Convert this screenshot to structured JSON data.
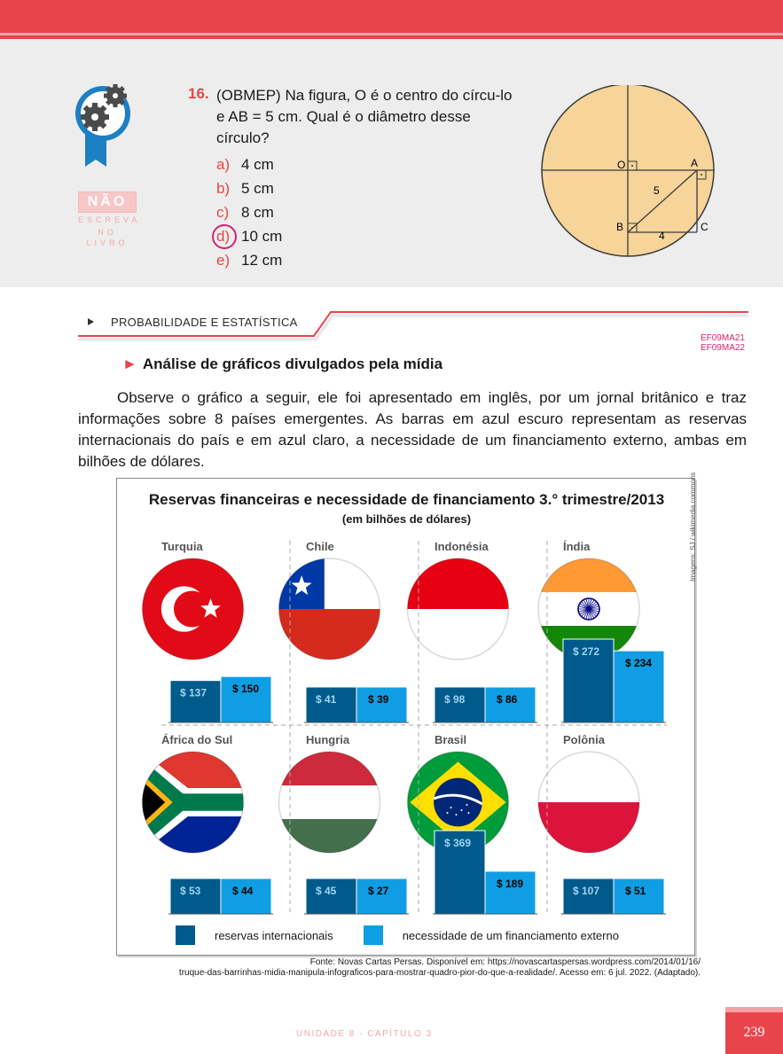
{
  "exercise": {
    "number": "16.",
    "text": "(OBMEP) Na figura, O é o centro do círcu-lo e AB = 5 cm. Qual é o diâmetro desse círculo?",
    "options": [
      {
        "letter": "a)",
        "text": "4 cm",
        "selected": false
      },
      {
        "letter": "b)",
        "text": "5 cm",
        "selected": false
      },
      {
        "letter": "c)",
        "text": "8 cm",
        "selected": false
      },
      {
        "letter": "d)",
        "text": "10 cm",
        "selected": true
      },
      {
        "letter": "e)",
        "text": "12 cm",
        "selected": false
      }
    ],
    "figure": {
      "label_o": "O",
      "label_a": "A",
      "label_b": "B",
      "label_c": "C",
      "label_ab": "5",
      "label_bc": "4"
    }
  },
  "warning": {
    "main": "NÃO",
    "sub1": "ESCREVA",
    "sub2": "NO LIVRO"
  },
  "section": {
    "label": "PROBABILIDADE E ESTATÍSTICA",
    "codes": [
      "EF09MA21",
      "EF09MA22"
    ]
  },
  "subheading": "Análise de gráficos divulgados pela mídia",
  "paragraph": "Observe o gráfico a seguir, ele foi apresentado em inglês, por um jornal britânico e traz informações sobre 8 países emergentes. As barras em azul escuro representam as reservas internacionais do país e em azul claro, a necessidade de um financiamento externo, ambas em bilhões de dólares.",
  "chart_credit": "Imagens: SJ / wikimedia.commons",
  "chart_data": {
    "type": "bar",
    "title": "Reservas financeiras e necessidade de financiamento 3.° trimestre/2013",
    "subtitle": "(em bilhões de dólares)",
    "colors": {
      "reservas": "#005a8c",
      "necessidade": "#0f9ee3"
    },
    "countries": [
      {
        "name": "Turquia",
        "flag": "turkey-flag-icon",
        "reservas": 137,
        "necessidade": 150,
        "reservas_label": "$ 137",
        "necessidade_label": "$ 150"
      },
      {
        "name": "Chile",
        "flag": "chile-flag-icon",
        "reservas": 41,
        "necessidade": 39,
        "reservas_label": "$ 41",
        "necessidade_label": "$ 39"
      },
      {
        "name": "Indonésia",
        "flag": "indonesia-flag-icon",
        "reservas": 98,
        "necessidade": 86,
        "reservas_label": "$ 98",
        "necessidade_label": "$ 86"
      },
      {
        "name": "Índia",
        "flag": "india-flag-icon",
        "reservas": 272,
        "necessidade": 234,
        "reservas_label": "$ 272",
        "necessidade_label": "$ 234"
      },
      {
        "name": "África do Sul",
        "flag": "south-africa-flag-icon",
        "reservas": 53,
        "necessidade": 44,
        "reservas_label": "$ 53",
        "necessidade_label": "$ 44"
      },
      {
        "name": "Hungria",
        "flag": "hungary-flag-icon",
        "reservas": 45,
        "necessidade": 27,
        "reservas_label": "$ 45",
        "necessidade_label": "$ 27"
      },
      {
        "name": "Brasil",
        "flag": "brazil-flag-icon",
        "reservas": 369,
        "necessidade": 189,
        "reservas_label": "$ 369",
        "necessidade_label": "$ 189"
      },
      {
        "name": "Polônia",
        "flag": "poland-flag-icon",
        "reservas": 107,
        "necessidade": 51,
        "reservas_label": "$ 107",
        "necessidade_label": "$ 51"
      }
    ],
    "legend": [
      "reservas internacionais",
      "necessidade de um financiamento externo"
    ],
    "legend_position": "bottom"
  },
  "source": {
    "line1": "Fonte: Novas Cartas Persas. Disponível em: https://novascartaspersas.wordpress.com/2014/01/16/",
    "line2": "truque-das-barrinhas-midia-manipula-infograficos-para-mostrar-quadro-pior-do-que-a-realidade/. Acesso em: 6 jul. 2022. (Adaptado)."
  },
  "footer": {
    "unit": "UNIDADE 8  -  CAPÍTULO 3",
    "page": "239"
  }
}
